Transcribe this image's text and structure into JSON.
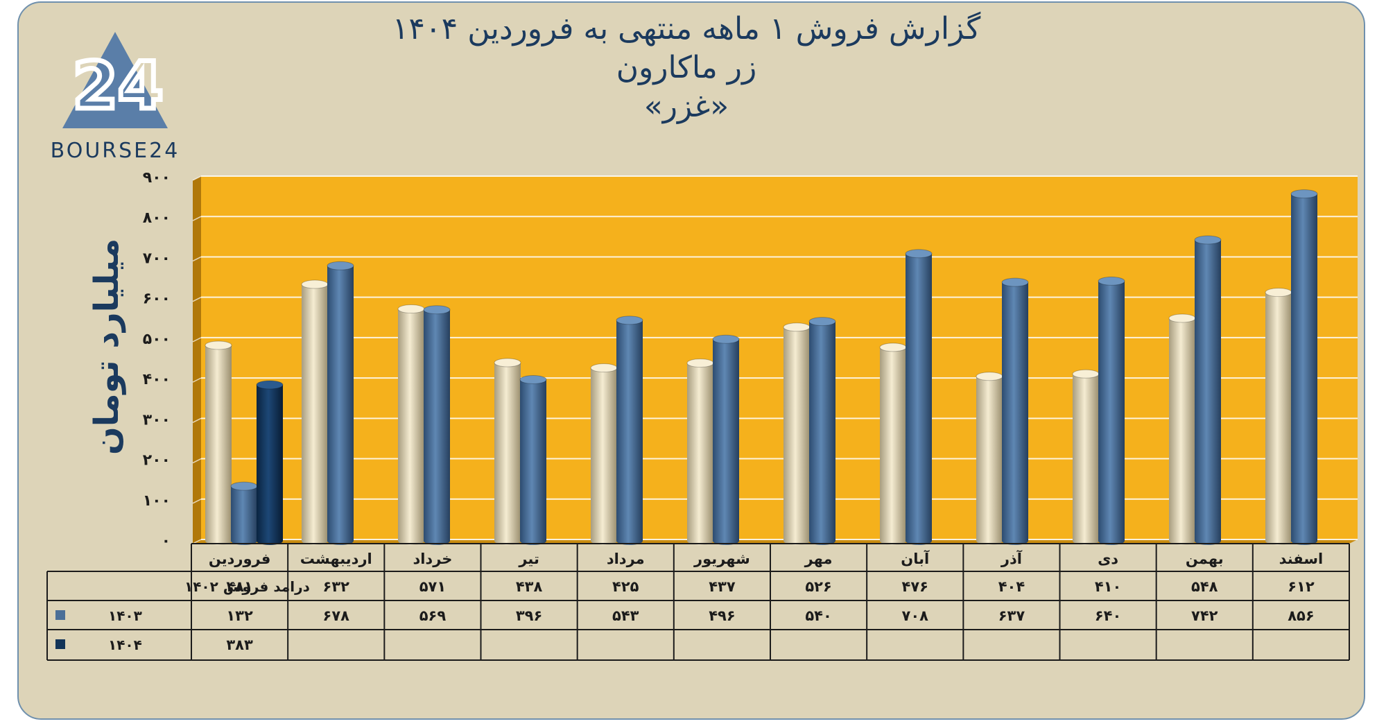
{
  "brand": {
    "logo_text": "BOURSE24",
    "logo_digits": "24"
  },
  "title_lines": [
    "گزارش  فروش ۱ ماهه منتهی به فروردین ۱۴۰۴",
    "زر ماکارون",
    "«غزر»"
  ],
  "colors": {
    "background": "#ddd4b8",
    "plot_area": "#f5b11c",
    "series_1402": "#ece0c0",
    "series_1403": "#4b6f98",
    "series_1404": "#123458",
    "title": "#1b3a5e"
  },
  "chart_data": {
    "type": "bar",
    "title": "گزارش  فروش ۱ ماهه منتهی به فروردین ۱۴۰۴",
    "subtitle": "زر ماکارون «غزر»",
    "ylabel": "میلیارد تومان",
    "ylim": [
      0,
      900
    ],
    "yticks": [
      0,
      100,
      200,
      300,
      400,
      500,
      600,
      700,
      800,
      900
    ],
    "ytick_labels": [
      "۰",
      "۱۰۰",
      "۲۰۰",
      "۳۰۰",
      "۴۰۰",
      "۵۰۰",
      "۶۰۰",
      "۷۰۰",
      "۸۰۰",
      "۹۰۰"
    ],
    "grid": true,
    "categories": [
      "فروردین",
      "اردیبهشت",
      "خرداد",
      "تیر",
      "مرداد",
      "شهریور",
      "مهر",
      "آبان",
      "آذر",
      "دی",
      "بهمن",
      "اسفند"
    ],
    "series": [
      {
        "name": "درامد فروش ۱۴۰۲",
        "values": [
          481,
          632,
          571,
          438,
          425,
          437,
          526,
          476,
          404,
          410,
          548,
          612
        ],
        "labels": [
          "۴۸۱",
          "۶۳۲",
          "۵۷۱",
          "۴۳۸",
          "۴۲۵",
          "۴۳۷",
          "۵۲۶",
          "۴۷۶",
          "۴۰۴",
          "۴۱۰",
          "۵۴۸",
          "۶۱۲"
        ]
      },
      {
        "name": "۱۴۰۳",
        "values": [
          132,
          678,
          569,
          396,
          543,
          496,
          540,
          708,
          637,
          640,
          742,
          856
        ],
        "labels": [
          "۱۳۲",
          "۶۷۸",
          "۵۶۹",
          "۳۹۶",
          "۵۴۳",
          "۴۹۶",
          "۵۴۰",
          "۷۰۸",
          "۶۳۷",
          "۶۴۰",
          "۷۴۲",
          "۸۵۶"
        ]
      },
      {
        "name": "۱۴۰۴",
        "values": [
          383,
          null,
          null,
          null,
          null,
          null,
          null,
          null,
          null,
          null,
          null,
          null
        ],
        "labels": [
          "۳۸۳",
          "",
          "",
          "",
          "",
          "",
          "",
          "",
          "",
          "",
          "",
          ""
        ]
      }
    ]
  }
}
